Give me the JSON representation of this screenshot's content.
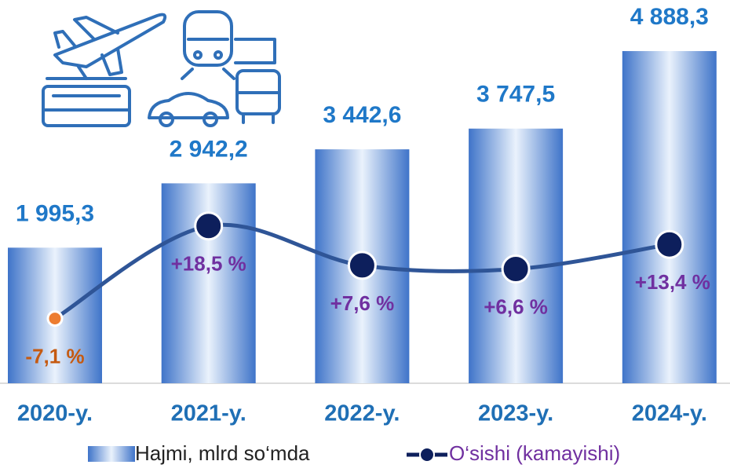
{
  "chart_data": {
    "type": "bar",
    "categories": [
      "2020-y.",
      "2021-y.",
      "2022-y.",
      "2023-y.",
      "2024-y."
    ],
    "series": [
      {
        "name": "Hajmi, mlrd so‘mda",
        "type": "bar",
        "color": "#3f74c9",
        "values": [
          1995.3,
          2942.2,
          3442.6,
          3747.5,
          4888.3
        ],
        "value_labels": [
          "1 995,3",
          "2 942,2",
          "3 442,6",
          "3 747,5",
          "4 888,3"
        ]
      },
      {
        "name": "O‘sishi (kamayishi)",
        "type": "line",
        "axis": "y2",
        "color": "#0d1f5c",
        "negative_color": "#ed7d31",
        "values": [
          -7.1,
          18.5,
          7.6,
          6.6,
          13.4
        ],
        "value_labels": [
          "-7,1 %",
          "+18,5 %",
          "+7,6 %",
          "+6,6 %",
          "+13,4 %"
        ]
      }
    ],
    "ylim": [
      0,
      5640
    ],
    "y2lim": [
      -25,
      81
    ]
  }
}
